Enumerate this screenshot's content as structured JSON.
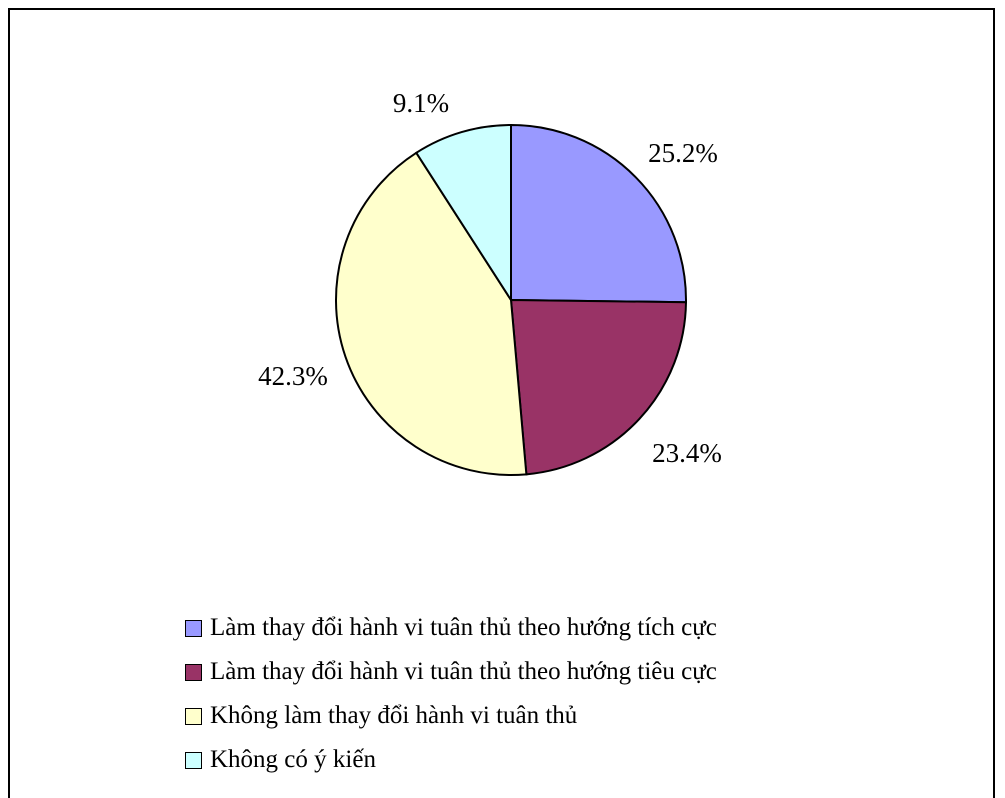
{
  "chart_data": {
    "type": "pie",
    "title": "",
    "slices": [
      {
        "name": "Làm thay đổi hành vi tuân thủ theo hướng tích cực",
        "value": 25.2,
        "label": "25.2%",
        "color": "#9999FF"
      },
      {
        "name": "Làm thay đổi hành vi tuân thủ theo hướng tiêu cực",
        "value": 23.4,
        "label": "23.4%",
        "color": "#993366"
      },
      {
        "name": "Không làm thay đổi hành vi tuân thủ",
        "value": 42.3,
        "label": "42.3%",
        "color": "#FFFFCC"
      },
      {
        "name": "Không có ý kiến",
        "value": 9.1,
        "label": "9.1%",
        "color": "#CCFFFF"
      }
    ],
    "start": "12 o'clock",
    "direction": "clockwise",
    "legend_position": "bottom"
  },
  "legend": {
    "items": [
      {
        "label": "Làm thay đổi hành vi tuân thủ theo hướng tích cực",
        "color": "#9999FF"
      },
      {
        "label": "Làm thay đổi hành vi tuân thủ theo hướng tiêu cực",
        "color": "#993366"
      },
      {
        "label": "Không làm thay đổi hành vi tuân thủ",
        "color": "#FFFFCC"
      },
      {
        "label": "Không có ý kiến",
        "color": "#CCFFFF"
      }
    ]
  }
}
